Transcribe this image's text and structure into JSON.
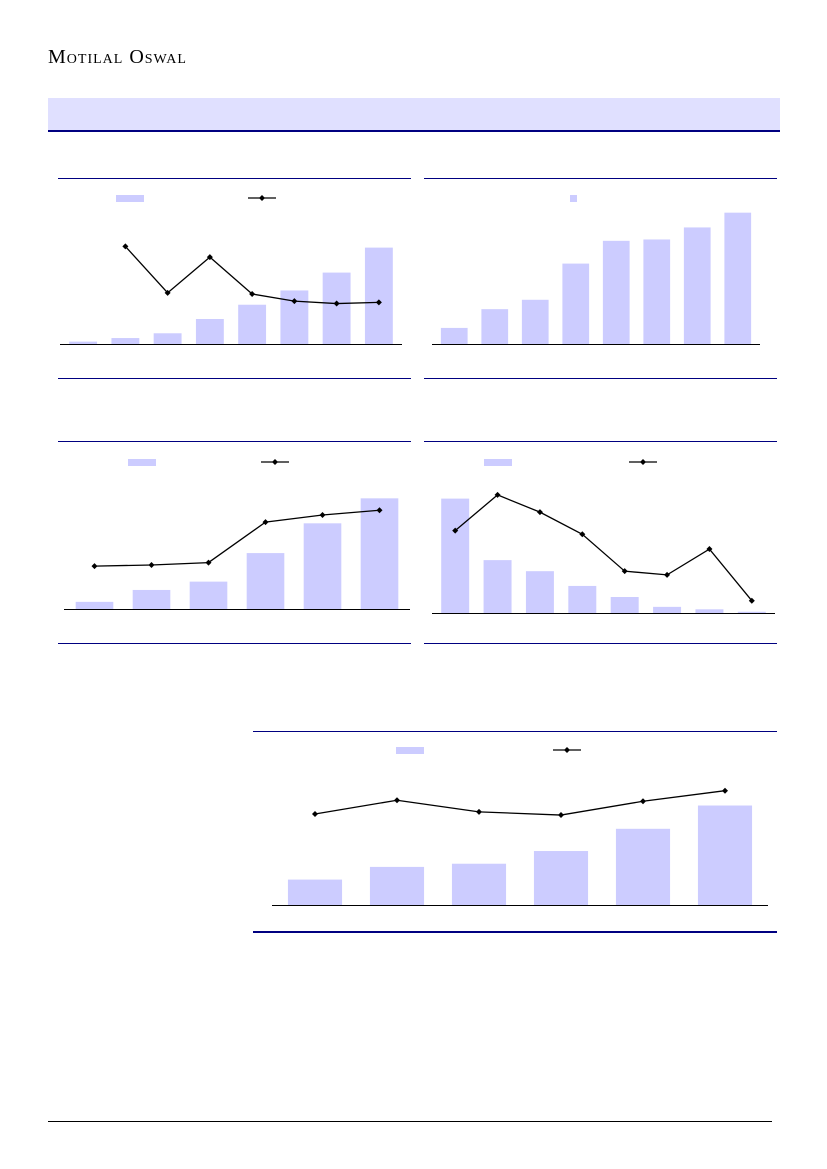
{
  "header": {
    "brand": "Motilal Oswal"
  },
  "colors": {
    "bar": "#ccccff",
    "line": "#000000",
    "rule": "#000080",
    "banner": "#e0e0ff"
  },
  "chart_data": [
    {
      "type": "bar",
      "series": [
        {
          "kind": "bar",
          "values": [
            2,
            5,
            9,
            21,
            33,
            45,
            60,
            81
          ]
        },
        {
          "kind": "line",
          "values": [
            null,
            82,
            43,
            73,
            42,
            36,
            34,
            35
          ]
        }
      ],
      "bar_ylim": [
        0,
        100
      ],
      "line_ylim": [
        0,
        100
      ]
    },
    {
      "type": "bar",
      "series": [
        {
          "kind": "bar",
          "values": [
            12,
            26,
            33,
            60,
            77,
            78,
            87,
            98
          ]
        }
      ],
      "bar_ylim": [
        0,
        100
      ]
    },
    {
      "type": "bar",
      "series": [
        {
          "kind": "bar",
          "values": [
            6,
            16,
            23,
            47,
            72,
            93
          ]
        },
        {
          "kind": "line",
          "values": [
            36,
            37,
            39,
            73,
            79,
            83
          ]
        }
      ],
      "bar_ylim": [
        0,
        100
      ],
      "line_ylim": [
        0,
        100
      ]
    },
    {
      "type": "bar",
      "series": [
        {
          "kind": "bar",
          "values": [
            93,
            43,
            34,
            22,
            13,
            5,
            3,
            1
          ]
        },
        {
          "kind": "line",
          "values": [
            67,
            96,
            82,
            64,
            34,
            31,
            52,
            10
          ]
        }
      ],
      "bar_ylim": [
        0,
        100
      ],
      "line_ylim": [
        0,
        100
      ]
    },
    {
      "type": "bar",
      "series": [
        {
          "kind": "bar",
          "values": [
            24,
            36,
            39,
            51,
            72,
            94
          ]
        },
        {
          "kind": "line",
          "values": [
            86,
            99,
            88,
            85,
            98,
            108
          ]
        }
      ],
      "bar_ylim": [
        0,
        120
      ],
      "line_ylim": [
        0,
        120
      ]
    }
  ]
}
